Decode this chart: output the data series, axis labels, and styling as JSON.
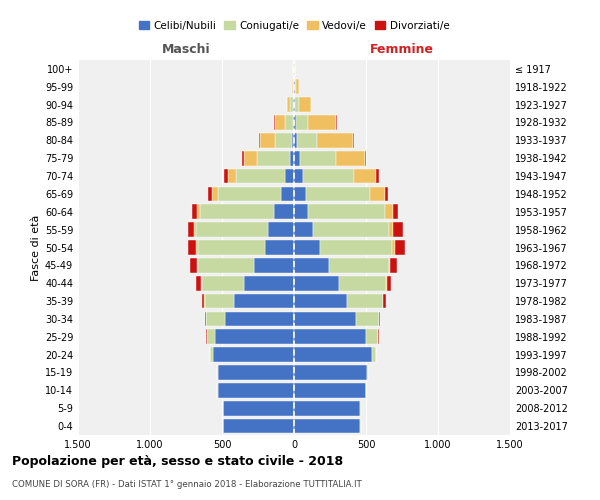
{
  "age_groups": [
    "0-4",
    "5-9",
    "10-14",
    "15-19",
    "20-24",
    "25-29",
    "30-34",
    "35-39",
    "40-44",
    "45-49",
    "50-54",
    "55-59",
    "60-64",
    "65-69",
    "70-74",
    "75-79",
    "80-84",
    "85-89",
    "90-94",
    "95-99",
    "100+"
  ],
  "birth_years": [
    "2013-2017",
    "2008-2012",
    "2003-2007",
    "1998-2002",
    "1993-1997",
    "1988-1992",
    "1983-1987",
    "1978-1982",
    "1973-1977",
    "1968-1972",
    "1963-1967",
    "1958-1962",
    "1953-1957",
    "1948-1952",
    "1943-1947",
    "1938-1942",
    "1933-1937",
    "1928-1932",
    "1923-1927",
    "1918-1922",
    "≤ 1917"
  ],
  "colors": {
    "celibi": "#4472c4",
    "coniugati": "#c5d9a0",
    "vedovi": "#f0c060",
    "divorziati": "#cc1111"
  },
  "males": {
    "celibi": [
      490,
      490,
      530,
      530,
      560,
      550,
      480,
      420,
      350,
      280,
      200,
      180,
      140,
      90,
      60,
      30,
      15,
      10,
      5,
      3,
      2
    ],
    "coniugati": [
      2,
      2,
      3,
      4,
      20,
      55,
      130,
      200,
      290,
      390,
      470,
      500,
      510,
      440,
      340,
      230,
      120,
      55,
      20,
      5,
      2
    ],
    "vedovi": [
      0,
      0,
      0,
      0,
      0,
      1,
      1,
      2,
      3,
      5,
      8,
      15,
      25,
      40,
      60,
      85,
      100,
      70,
      25,
      5,
      1
    ],
    "divorziati": [
      0,
      0,
      0,
      0,
      2,
      5,
      10,
      20,
      35,
      45,
      60,
      40,
      35,
      30,
      25,
      15,
      5,
      2,
      0,
      0,
      0
    ]
  },
  "females": {
    "celibi": [
      460,
      460,
      500,
      510,
      540,
      500,
      430,
      370,
      310,
      240,
      180,
      130,
      100,
      80,
      60,
      40,
      20,
      15,
      8,
      4,
      2
    ],
    "coniugati": [
      2,
      2,
      3,
      4,
      28,
      85,
      158,
      248,
      330,
      420,
      500,
      530,
      530,
      450,
      360,
      250,
      140,
      80,
      28,
      8,
      2
    ],
    "vedovi": [
      0,
      0,
      0,
      0,
      0,
      1,
      2,
      3,
      5,
      10,
      20,
      30,
      60,
      100,
      150,
      200,
      250,
      200,
      80,
      25,
      5
    ],
    "divorziati": [
      0,
      0,
      0,
      0,
      1,
      3,
      8,
      20,
      30,
      45,
      70,
      65,
      35,
      25,
      20,
      10,
      5,
      2,
      0,
      0,
      0
    ]
  },
  "title": "Popolazione per età, sesso e stato civile - 2018",
  "subtitle": "COMUNE DI SORA (FR) - Dati ISTAT 1° gennaio 2018 - Elaborazione TUTTITALIA.IT",
  "xlabel_left": "Maschi",
  "xlabel_right": "Femmine",
  "ylabel_left": "Fasce di età",
  "xlim": 1500,
  "xticks": [
    -1500,
    -1000,
    -500,
    0,
    500,
    1000,
    1500
  ],
  "xticklabels": [
    "1.500",
    "1.000",
    "500",
    "0",
    "500",
    "1.000",
    "1.500"
  ],
  "legend_labels": [
    "Celibi/Nubili",
    "Coniugati/e",
    "Vedovi/e",
    "Divorziati/e"
  ],
  "background_color": "#f0f0f0"
}
